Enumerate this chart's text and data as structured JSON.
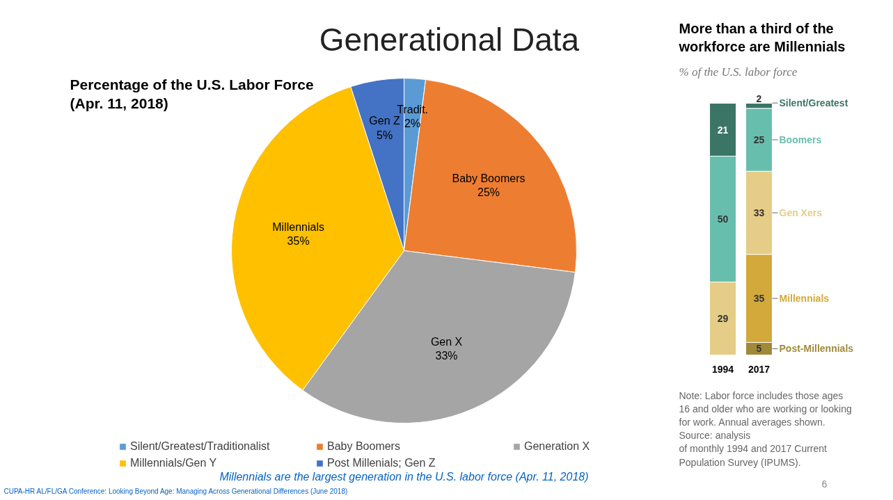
{
  "chart_data": [
    {
      "type": "pie",
      "title": "Generational Data",
      "subtitle": "Percentage of the U.S. Labor Force (Apr. 11, 2018)",
      "categories": [
        "Silent/Greatest/Traditionalist",
        "Baby Boomers",
        "Generation X",
        "Millennials/Gen Y",
        "Post Millenials; Gen Z"
      ],
      "values": [
        2,
        25,
        33,
        35,
        5
      ],
      "colors": [
        "#5b9bd5",
        "#ed7d31",
        "#a5a5a5",
        "#ffc000",
        "#4472c4"
      ],
      "value_labels": [
        "Tradit.\n2%",
        "Baby Boomers\n25%",
        "Gen X\n33%",
        "Millennials\n35%",
        "Gen Z\n5%"
      ],
      "legend": "bottom",
      "annotations": [
        "Millennials are the largest generation in the U.S. labor force (Apr. 11, 2018)",
        "CUPA-HR AL/FL/GA Conference: Looking Beyond Age: Managing Across Generational Differences (June 2018)"
      ]
    },
    {
      "type": "bar",
      "stacked": true,
      "title": "More than a third of the workforce are Millennials",
      "subtitle": "% of the U.S. labor force",
      "categories": [
        "1994",
        "2017"
      ],
      "series": [
        {
          "name": "Post-Millennials",
          "color": "#a08a3a",
          "values": [
            null,
            5
          ]
        },
        {
          "name": "Millennials",
          "color": "#d2a93a",
          "values": [
            null,
            35
          ]
        },
        {
          "name": "Gen Xers",
          "color": "#e5cd87",
          "values": [
            29,
            33
          ]
        },
        {
          "name": "Boomers",
          "color": "#68bead",
          "values": [
            50,
            25
          ]
        },
        {
          "name": "Silent/Greatest",
          "color": "#3b7566",
          "values": [
            21,
            2
          ]
        }
      ],
      "data_labels": true,
      "annotations": [
        "Note: Labor force includes those ages\n16 and older who are working or looking\nfor work. Annual averages shown.\nSource: analysis\nof monthly 1994 and 2017 Current\nPopulation Survey (IPUMS).",
        "6"
      ]
    }
  ]
}
